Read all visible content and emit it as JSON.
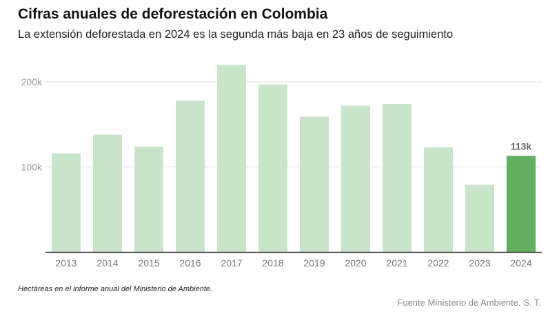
{
  "header": {
    "title": "Cifras anuales de deforestación en Colombia",
    "subtitle": "La extensión deforestada en 2024 es la segunda más baja en 23 años de seguimiento"
  },
  "footer": {
    "note": "Hectáreas en el informe anual del Ministerio de Ambiente.",
    "source": "Fuente Ministerio de Ambiente. S. T."
  },
  "colors": {
    "bar": "#c8e5c9",
    "highlight": "#63ae60",
    "grid": "#dddddd",
    "axis": "#333333",
    "tick_label": "#9a9a9a",
    "x_label": "#777777",
    "value_label": "#666666"
  },
  "chart_data": {
    "type": "bar",
    "title": "Cifras anuales de deforestación en Colombia",
    "subtitle": "La extensión deforestada en 2024 es la segunda más baja en 23 años de seguimiento",
    "xlabel": "",
    "ylabel": "",
    "categories": [
      "2013",
      "2014",
      "2015",
      "2016",
      "2017",
      "2018",
      "2019",
      "2020",
      "2021",
      "2022",
      "2023",
      "2024"
    ],
    "values": [
      116000,
      138000,
      124000,
      178000,
      220000,
      197000,
      159000,
      172000,
      174000,
      123000,
      79000,
      113000
    ],
    "ylim": [
      0,
      230000
    ],
    "yticks": [
      100000,
      200000
    ],
    "ytick_labels": [
      "100k",
      "200k"
    ],
    "highlight_index": 11,
    "highlight_label": "113k",
    "grid": true,
    "legend": "none"
  }
}
